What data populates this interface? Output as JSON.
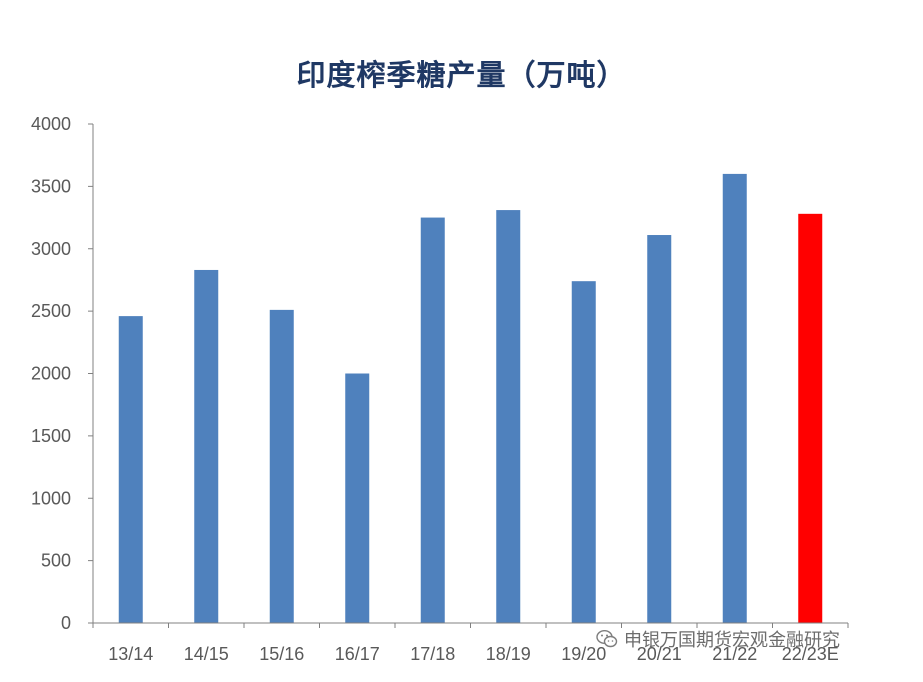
{
  "chart_data": {
    "type": "bar",
    "title": "印度榨季糖产量（万吨）",
    "categories": [
      "13/14",
      "14/15",
      "15/16",
      "16/17",
      "17/18",
      "18/19",
      "19/20",
      "20/21",
      "21/22",
      "22/23E"
    ],
    "values": [
      2460,
      2830,
      2510,
      2000,
      3250,
      3310,
      2740,
      3110,
      3600,
      3280
    ],
    "bar_colors": [
      "#4f81bd",
      "#4f81bd",
      "#4f81bd",
      "#4f81bd",
      "#4f81bd",
      "#4f81bd",
      "#4f81bd",
      "#4f81bd",
      "#4f81bd",
      "#ff0000"
    ],
    "ylim": [
      0,
      4000
    ],
    "yticks": [
      0,
      500,
      1000,
      1500,
      2000,
      2500,
      3000,
      3500,
      4000
    ],
    "grid": false,
    "legend": "none"
  },
  "watermark": {
    "text": "申银万国期货宏观金融研究",
    "icon": "wechat-icon"
  }
}
